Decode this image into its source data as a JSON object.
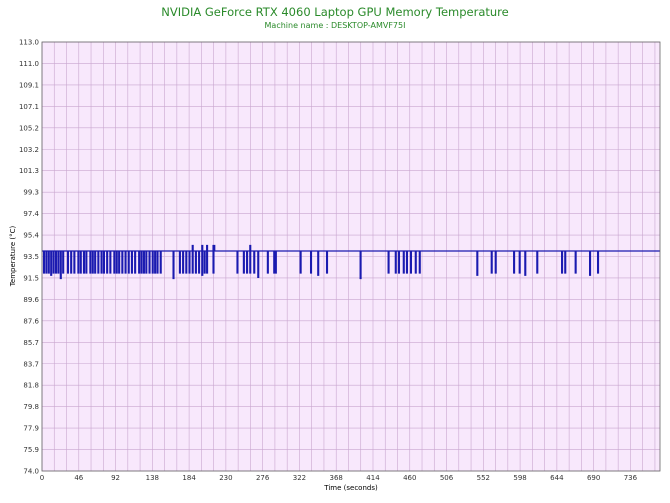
{
  "header": {
    "title": "NVIDIA GeForce RTX 4060 Laptop GPU Memory Temperature",
    "subtitle": "Machine name : DESKTOP-AMVF75I"
  },
  "colors": {
    "title": "#2a8a2a",
    "plot_background": "#f8e8fc",
    "grid": "#c9a6cf",
    "series": "#1a1ab0"
  },
  "chart_data": {
    "type": "line",
    "title": "NVIDIA GeForce RTX 4060 Laptop GPU Memory Temperature",
    "subtitle": "Machine name : DESKTOP-AMVF75I",
    "xlabel": "Time (seconds)",
    "ylabel": "Temperature (°C)",
    "xlim": [
      0,
      773
    ],
    "ylim": [
      74.0,
      113.0
    ],
    "grid": true,
    "x_ticks": [
      "0",
      "46",
      "92",
      "138",
      "184",
      "230",
      "276",
      "322",
      "368",
      "414",
      "460",
      "506",
      "552",
      "598",
      "644",
      "690",
      "736"
    ],
    "y_ticks": [
      "113.0",
      "111.0",
      "109.1",
      "107.1",
      "105.2",
      "103.2",
      "101.3",
      "99.3",
      "97.4",
      "95.4",
      "93.5",
      "91.5",
      "89.6",
      "87.6",
      "85.7",
      "83.7",
      "81.8",
      "79.8",
      "77.9",
      "75.9",
      "74.0"
    ],
    "series": [
      {
        "baseline": 94.0,
        "dips": [
          [
            2,
            92.0
          ],
          [
            5,
            92.0
          ],
          [
            8,
            92.0
          ],
          [
            11,
            91.8
          ],
          [
            14,
            92.0
          ],
          [
            17,
            92.0
          ],
          [
            20,
            92.0
          ],
          [
            23,
            91.5
          ],
          [
            26,
            92.0
          ],
          [
            32,
            92.0
          ],
          [
            36,
            92.0
          ],
          [
            40,
            92.0
          ],
          [
            45,
            92.0
          ],
          [
            48,
            92.0
          ],
          [
            52,
            92.0
          ],
          [
            55,
            92.0
          ],
          [
            60,
            92.0
          ],
          [
            63,
            92.0
          ],
          [
            66,
            92.0
          ],
          [
            70,
            92.0
          ],
          [
            74,
            92.0
          ],
          [
            77,
            92.0
          ],
          [
            81,
            92.0
          ],
          [
            85,
            92.0
          ],
          [
            90,
            92.0
          ],
          [
            93,
            92.0
          ],
          [
            96,
            92.0
          ],
          [
            100,
            92.0
          ],
          [
            104,
            92.0
          ],
          [
            108,
            92.0
          ],
          [
            112,
            92.0
          ],
          [
            116,
            92.0
          ],
          [
            121,
            92.0
          ],
          [
            124,
            92.0
          ],
          [
            127,
            92.0
          ],
          [
            130,
            92.0
          ],
          [
            134,
            92.0
          ],
          [
            138,
            92.0
          ],
          [
            141,
            92.0
          ],
          [
            144,
            92.0
          ],
          [
            148,
            92.0
          ],
          [
            164,
            91.5
          ],
          [
            172,
            92.0
          ],
          [
            176,
            92.0
          ],
          [
            180,
            92.0
          ],
          [
            184,
            92.0
          ],
          [
            188,
            92.0
          ],
          [
            192,
            92.0
          ],
          [
            196,
            92.0
          ],
          [
            200,
            91.8
          ],
          [
            203,
            92.0
          ],
          [
            206,
            92.0
          ],
          [
            214,
            92.0
          ],
          [
            244,
            92.0
          ],
          [
            252,
            92.0
          ],
          [
            256,
            92.0
          ],
          [
            260,
            92.0
          ],
          [
            265,
            92.0
          ],
          [
            270,
            91.6
          ],
          [
            282,
            92.0
          ],
          [
            290,
            92.0
          ],
          [
            292,
            92.0
          ],
          [
            323,
            92.0
          ],
          [
            336,
            92.0
          ],
          [
            345,
            91.8
          ],
          [
            356,
            92.0
          ],
          [
            398,
            91.5
          ],
          [
            433,
            92.0
          ],
          [
            442,
            92.0
          ],
          [
            446,
            92.0
          ],
          [
            452,
            92.0
          ],
          [
            456,
            92.0
          ],
          [
            461,
            92.0
          ],
          [
            467,
            92.0
          ],
          [
            472,
            92.0
          ],
          [
            544,
            91.8
          ],
          [
            562,
            92.0
          ],
          [
            567,
            92.0
          ],
          [
            590,
            92.0
          ],
          [
            597,
            92.0
          ],
          [
            604,
            91.8
          ],
          [
            619,
            92.0
          ],
          [
            650,
            92.0
          ],
          [
            654,
            92.0
          ],
          [
            667,
            92.0
          ],
          [
            685,
            91.8
          ],
          [
            695,
            92.0
          ]
        ],
        "peaks": [
          [
            188,
            94.5
          ],
          [
            200,
            94.5
          ],
          [
            206,
            94.5
          ],
          [
            214,
            94.5
          ],
          [
            215,
            94.5
          ],
          [
            260,
            94.5
          ]
        ]
      }
    ]
  }
}
